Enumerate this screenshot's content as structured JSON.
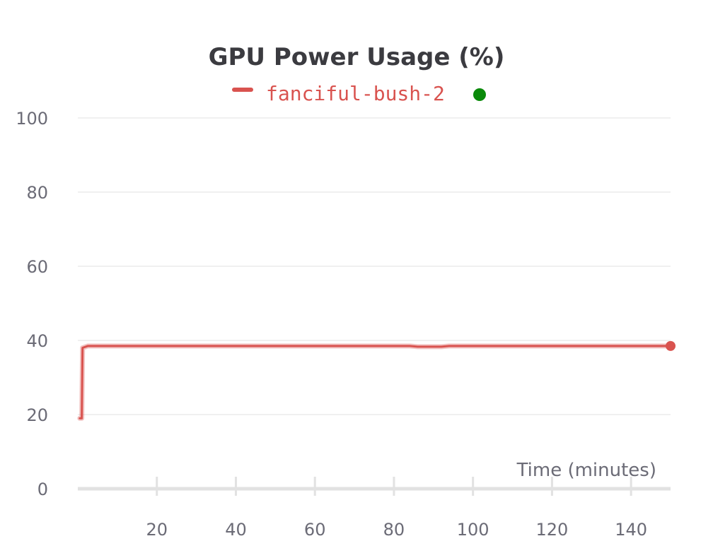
{
  "chart_data": {
    "type": "line",
    "title": "GPU Power Usage (%)",
    "xlabel": "Time (minutes)",
    "ylabel": "",
    "xlim": [
      0,
      150
    ],
    "ylim": [
      0,
      100
    ],
    "x_ticks": [
      20,
      40,
      60,
      80,
      100,
      120,
      140
    ],
    "y_ticks": [
      0,
      20,
      40,
      60,
      80,
      100
    ],
    "grid": "horizontal",
    "legend_position": "top-center",
    "series": [
      {
        "name": "fanciful-bush-2",
        "color": "#d9534f",
        "x": [
          0.5,
          1.0,
          1.2,
          2.5,
          60,
          84,
          86,
          92,
          94,
          148.5,
          150
        ],
        "y": [
          19,
          19,
          38,
          38.5,
          38.5,
          38.5,
          38.3,
          38.3,
          38.5,
          38.5,
          38.5
        ]
      }
    ],
    "status_indicator_color": "#0a8a0a",
    "axis_color": "#e2e2e2",
    "grid_color": "#ececec"
  }
}
